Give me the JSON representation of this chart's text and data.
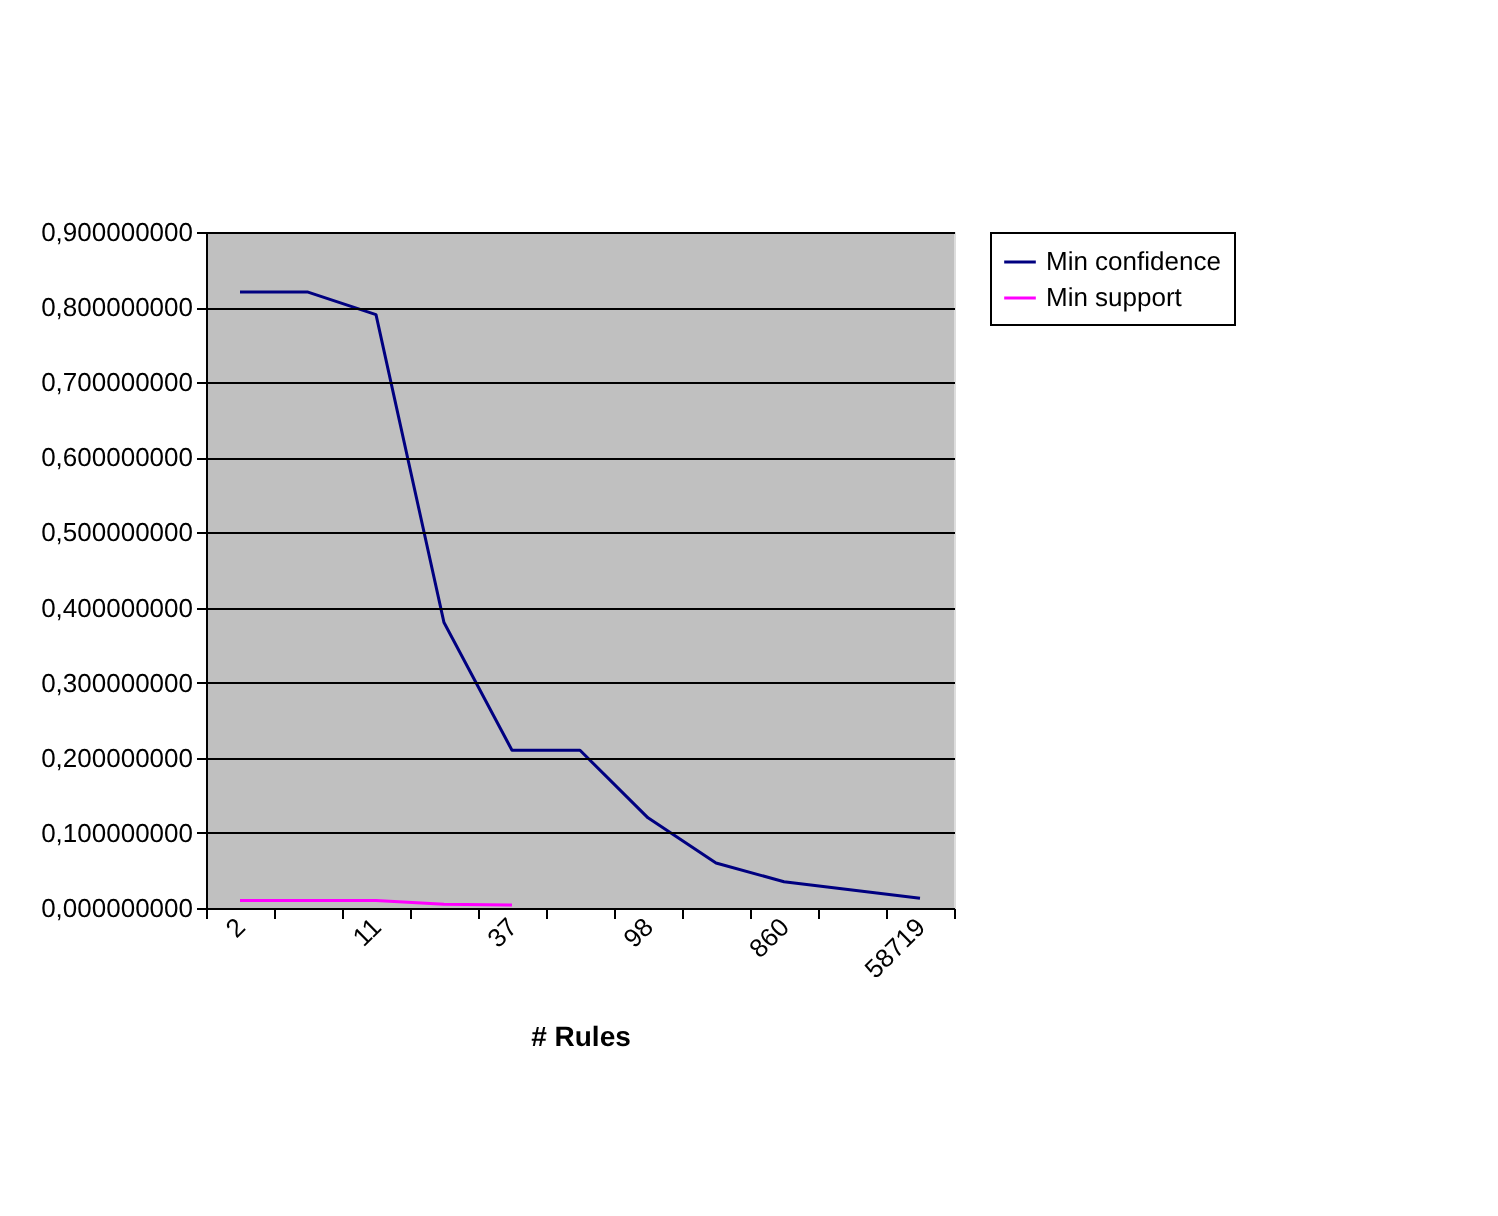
{
  "chart_data": {
    "type": "line",
    "xlabel": "# Rules",
    "categories": [
      "2",
      null,
      "11",
      null,
      "37",
      null,
      "98",
      null,
      "860",
      null,
      "58719"
    ],
    "series": [
      {
        "name": "Min confidence",
        "color": "#000080",
        "values": [
          0.82,
          0.82,
          0.79,
          0.38,
          0.21,
          0.21,
          0.12,
          0.06,
          0.035,
          0.024,
          0.013
        ]
      },
      {
        "name": "Min support",
        "color": "#ff00ff",
        "values": [
          0.01,
          0.01,
          0.01,
          0.005,
          0.004,
          null,
          null,
          null,
          null,
          null,
          null
        ]
      }
    ],
    "ylim": [
      0,
      0.9
    ],
    "yticks": [
      {
        "value": 0,
        "label": "0,000000000"
      },
      {
        "value": 0.1,
        "label": "0,100000000"
      },
      {
        "value": 0.2,
        "label": "0,200000000"
      },
      {
        "value": 0.3,
        "label": "0,300000000"
      },
      {
        "value": 0.4,
        "label": "0,400000000"
      },
      {
        "value": 0.5,
        "label": "0,500000000"
      },
      {
        "value": 0.6,
        "label": "0,600000000"
      },
      {
        "value": 0.7,
        "label": "0,700000000"
      },
      {
        "value": 0.8,
        "label": "0,800000000"
      },
      {
        "value": 0.9,
        "label": "0,900000000"
      }
    ],
    "grid": "y",
    "legend": "right",
    "marker": "none",
    "line_style": "solid"
  }
}
